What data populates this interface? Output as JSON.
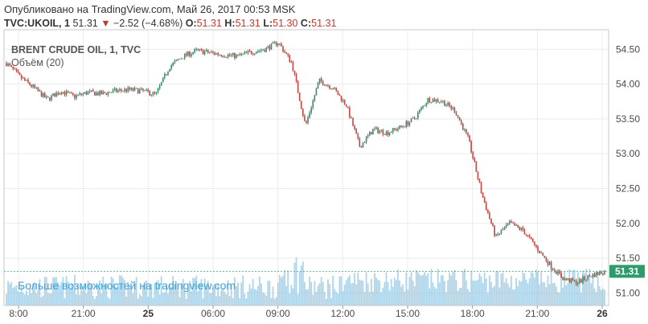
{
  "header": {
    "published": "Опубликовано на TradingView.com, Май 26, 2017 00:53 MSK",
    "symbol": "TVC:UKOIL, 1",
    "last": "51.31",
    "change_arrow": "▼",
    "change": "−2.52 (−4.68%)",
    "o_label": "O:",
    "o_value": "51.31",
    "h_label": "H:",
    "h_value": "51.31",
    "l_label": "L:",
    "l_value": "51.30",
    "c_label": "C:",
    "c_value": "51.31"
  },
  "legend": {
    "series_title": "BRENT CRUDE OIL, 1, TVC",
    "volume_title": "Объём (20)"
  },
  "watermark": "Больше возможностей на tradingview.com",
  "price_tag": "51.31",
  "colors": {
    "up": "#3a8a6e",
    "down": "#b94a48",
    "volume": "#8fc3e0",
    "volume_ma": "#5aa5d6",
    "price_line": "#6cb39a",
    "tag_bg": "#2e9c6a",
    "watermark": "#3ba0d8"
  },
  "chart_data": {
    "type": "line",
    "subtype": "candlestick-1min-with-volume",
    "y_ticks": [
      "54.50",
      "54.00",
      "53.50",
      "53.00",
      "52.50",
      "52.00",
      "51.50",
      "51.00"
    ],
    "x_ticks": [
      "8:00",
      "21:00",
      "25",
      "06:00",
      "09:00",
      "12:00",
      "15:00",
      "18:00",
      "21:00",
      "26"
    ],
    "x_ticks_bold": [
      "25",
      "26"
    ],
    "ylim": [
      50.82,
      54.78
    ],
    "grid": true,
    "price_line_value": 51.31,
    "series": [
      {
        "name": "BRENT CRUDE OIL, 1, TVC",
        "points": [
          [
            "8:00",
            54.3
          ],
          [
            "",
            54.1
          ],
          [
            "",
            53.95
          ],
          [
            "",
            53.78
          ],
          [
            "",
            53.9
          ],
          [
            "",
            53.82
          ],
          [
            "21:00",
            53.88
          ],
          [
            "",
            53.86
          ],
          [
            "",
            53.9
          ],
          [
            "",
            53.92
          ],
          [
            "",
            53.9
          ],
          [
            "25",
            53.85
          ],
          [
            "",
            54.25
          ],
          [
            "",
            54.4
          ],
          [
            "06:00",
            54.48
          ],
          [
            "",
            54.45
          ],
          [
            "",
            54.42
          ],
          [
            "09:00",
            54.4
          ],
          [
            "",
            54.46
          ],
          [
            "",
            54.5
          ],
          [
            "",
            54.6
          ],
          [
            "",
            54.3
          ],
          [
            "",
            53.4
          ],
          [
            "12:00",
            54.05
          ],
          [
            "",
            53.95
          ],
          [
            "",
            53.7
          ],
          [
            "",
            53.1
          ],
          [
            "",
            53.35
          ],
          [
            "15:00",
            53.3
          ],
          [
            "",
            53.38
          ],
          [
            "",
            53.5
          ],
          [
            "",
            53.78
          ],
          [
            "",
            53.76
          ],
          [
            "",
            53.62
          ],
          [
            "18:00",
            53.2
          ],
          [
            "",
            52.4
          ],
          [
            "",
            51.8
          ],
          [
            "",
            52.0
          ],
          [
            "",
            51.9
          ],
          [
            "21:00",
            51.65
          ],
          [
            "",
            51.4
          ],
          [
            "",
            51.2
          ],
          [
            "",
            51.15
          ],
          [
            "",
            51.25
          ],
          [
            "26",
            51.31
          ]
        ]
      }
    ]
  }
}
